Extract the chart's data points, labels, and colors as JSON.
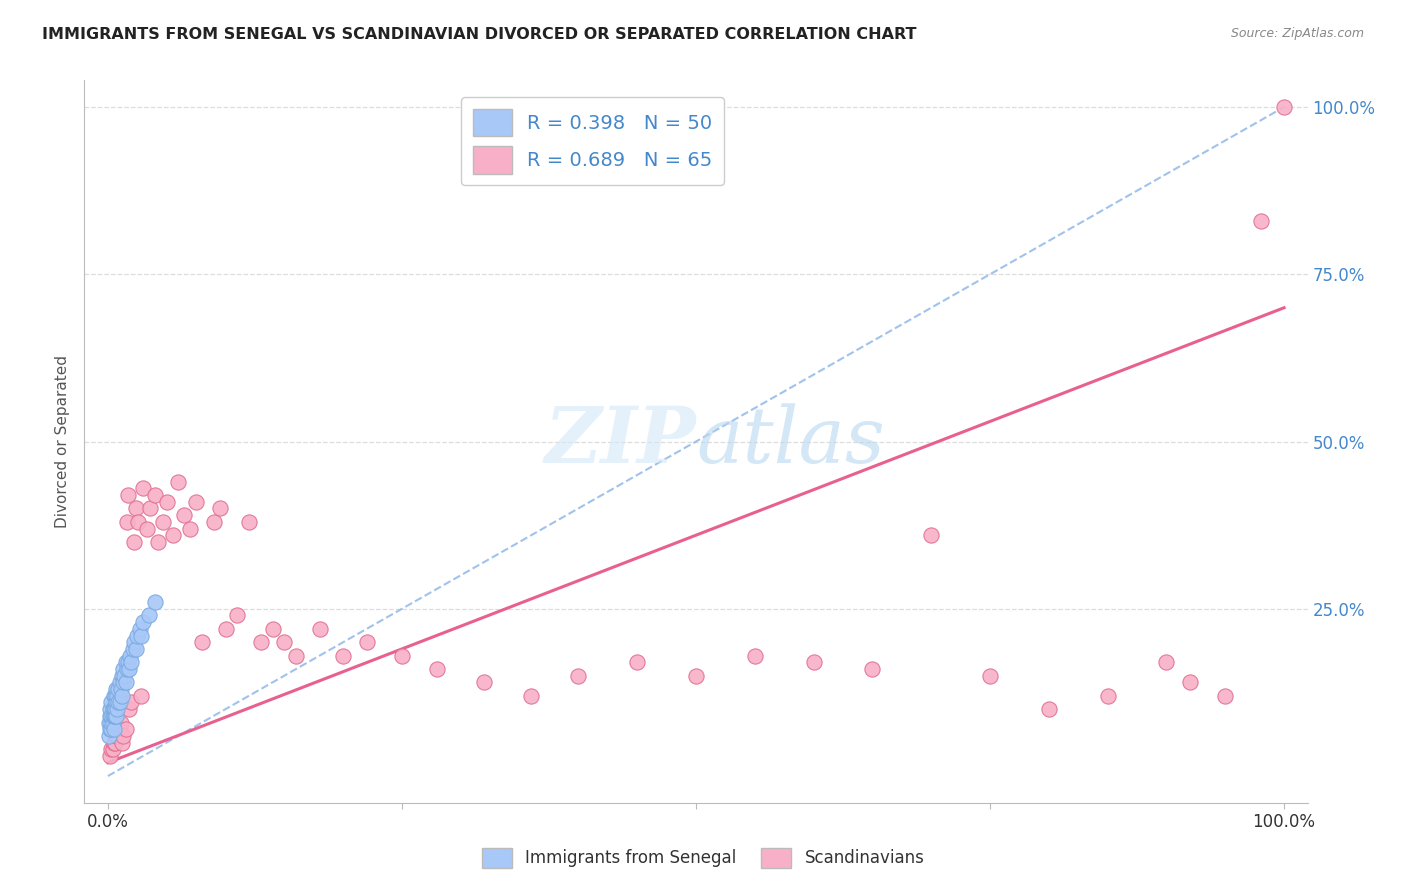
{
  "title": "IMMIGRANTS FROM SENEGAL VS SCANDINAVIAN DIVORCED OR SEPARATED CORRELATION CHART",
  "source": "Source: ZipAtlas.com",
  "ylabel": "Divorced or Separated",
  "legend_label1": "Immigrants from Senegal",
  "legend_label2": "Scandinavians",
  "R1": 0.398,
  "N1": 50,
  "R2": 0.689,
  "N2": 65,
  "color1": "#a8c8f8",
  "color1_edge": "#7aaae0",
  "color2": "#f8b0c8",
  "color2_edge": "#e07090",
  "line1_color": "#90b8e8",
  "line2_color": "#e86090",
  "ytick_color": "#4488cc",
  "xtick_color": "#333333",
  "title_color": "#222222",
  "source_color": "#888888",
  "grid_color": "#dddddd",
  "watermark_color": "#d4e8f8",
  "blue_x": [
    0.001,
    0.001,
    0.002,
    0.002,
    0.002,
    0.003,
    0.003,
    0.003,
    0.003,
    0.004,
    0.004,
    0.004,
    0.005,
    0.005,
    0.005,
    0.005,
    0.006,
    0.006,
    0.006,
    0.007,
    0.007,
    0.007,
    0.008,
    0.008,
    0.009,
    0.009,
    0.01,
    0.01,
    0.011,
    0.012,
    0.012,
    0.013,
    0.013,
    0.014,
    0.015,
    0.015,
    0.016,
    0.017,
    0.018,
    0.019,
    0.02,
    0.021,
    0.022,
    0.024,
    0.025,
    0.027,
    0.028,
    0.03,
    0.035,
    0.04
  ],
  "blue_y": [
    0.06,
    0.08,
    0.07,
    0.09,
    0.1,
    0.07,
    0.08,
    0.09,
    0.11,
    0.08,
    0.09,
    0.1,
    0.07,
    0.09,
    0.1,
    0.12,
    0.09,
    0.1,
    0.12,
    0.09,
    0.11,
    0.13,
    0.1,
    0.12,
    0.11,
    0.13,
    0.11,
    0.14,
    0.13,
    0.12,
    0.15,
    0.14,
    0.16,
    0.15,
    0.14,
    0.17,
    0.16,
    0.17,
    0.16,
    0.18,
    0.17,
    0.19,
    0.2,
    0.19,
    0.21,
    0.22,
    0.21,
    0.23,
    0.24,
    0.26
  ],
  "pink_x": [
    0.002,
    0.003,
    0.004,
    0.005,
    0.006,
    0.007,
    0.008,
    0.009,
    0.01,
    0.011,
    0.012,
    0.013,
    0.015,
    0.016,
    0.017,
    0.018,
    0.02,
    0.022,
    0.024,
    0.026,
    0.028,
    0.03,
    0.033,
    0.036,
    0.04,
    0.043,
    0.047,
    0.05,
    0.055,
    0.06,
    0.065,
    0.07,
    0.075,
    0.08,
    0.09,
    0.095,
    0.1,
    0.11,
    0.12,
    0.13,
    0.14,
    0.15,
    0.16,
    0.18,
    0.2,
    0.22,
    0.25,
    0.28,
    0.32,
    0.36,
    0.4,
    0.45,
    0.5,
    0.55,
    0.6,
    0.65,
    0.7,
    0.75,
    0.8,
    0.85,
    0.9,
    0.92,
    0.95,
    0.98,
    1.0
  ],
  "pink_y": [
    0.03,
    0.04,
    0.04,
    0.05,
    0.05,
    0.06,
    0.06,
    0.07,
    0.07,
    0.08,
    0.05,
    0.06,
    0.07,
    0.38,
    0.42,
    0.1,
    0.11,
    0.35,
    0.4,
    0.38,
    0.12,
    0.43,
    0.37,
    0.4,
    0.42,
    0.35,
    0.38,
    0.41,
    0.36,
    0.44,
    0.39,
    0.37,
    0.41,
    0.2,
    0.38,
    0.4,
    0.22,
    0.24,
    0.38,
    0.2,
    0.22,
    0.2,
    0.18,
    0.22,
    0.18,
    0.2,
    0.18,
    0.16,
    0.14,
    0.12,
    0.15,
    0.17,
    0.15,
    0.18,
    0.17,
    0.16,
    0.36,
    0.15,
    0.1,
    0.12,
    0.17,
    0.14,
    0.12,
    0.83,
    1.0
  ],
  "blue_line_x": [
    0.0,
    1.0
  ],
  "blue_line_y": [
    0.0,
    1.0
  ],
  "pink_line_x": [
    0.0,
    1.0
  ],
  "pink_line_y": [
    0.02,
    0.7
  ],
  "xlim": [
    0.0,
    1.0
  ],
  "ylim": [
    0.0,
    1.0
  ],
  "xticks": [
    0.0,
    0.25,
    0.5,
    0.75,
    1.0
  ],
  "xticklabels": [
    "0.0%",
    "",
    "",
    "",
    "100.0%"
  ],
  "yticks": [
    0.0,
    0.25,
    0.5,
    0.75,
    1.0
  ],
  "yticklabels": [
    "",
    "25.0%",
    "50.0%",
    "75.0%",
    "100.0%"
  ]
}
